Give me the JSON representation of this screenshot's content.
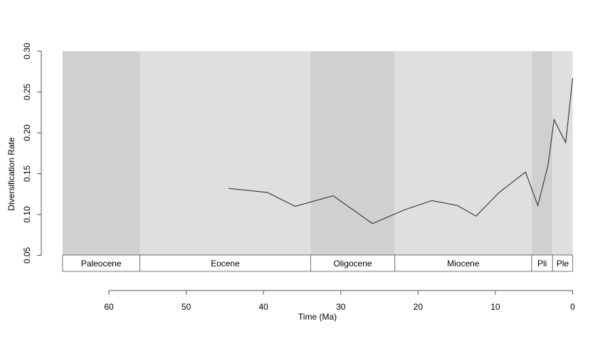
{
  "chart_data": {
    "type": "line",
    "title": "",
    "xlabel": "Time (Ma)",
    "ylabel": "Diversification Rate",
    "xlim": [
      66,
      0
    ],
    "ylim": [
      0.05,
      0.3
    ],
    "x_ticks": [
      60,
      50,
      40,
      30,
      20,
      10,
      0
    ],
    "y_ticks": [
      "0.05",
      "0.10",
      "0.15",
      "0.20",
      "0.25",
      "0.30"
    ],
    "x_tick_labels": [
      "60",
      "50",
      "40",
      "30",
      "20",
      "10",
      "0"
    ],
    "grid": false,
    "background_colors": {
      "dark": "#d0d0d0",
      "light": "#dfdfdf"
    },
    "line_color": "#333333",
    "epochs": [
      {
        "name": "Paleocene",
        "start": 66.0,
        "end": 56.0,
        "shade": "dark"
      },
      {
        "name": "Eocene",
        "start": 56.0,
        "end": 33.9,
        "shade": "light"
      },
      {
        "name": "Oligocene",
        "start": 33.9,
        "end": 23.0,
        "shade": "dark"
      },
      {
        "name": "Miocene",
        "start": 23.0,
        "end": 5.3,
        "shade": "light"
      },
      {
        "name": "Pli",
        "start": 5.3,
        "end": 2.6,
        "shade": "dark"
      },
      {
        "name": "Ple",
        "start": 2.6,
        "end": 0.0,
        "shade": "light"
      }
    ],
    "series": [
      {
        "x": [
          44.5,
          39.5,
          35.9,
          31.0,
          25.9,
          21.7,
          18.2,
          14.9,
          12.5,
          9.5,
          6.1,
          4.5,
          3.2,
          2.4,
          0.9,
          0.0
        ],
        "y": [
          0.132,
          0.127,
          0.11,
          0.123,
          0.089,
          0.106,
          0.117,
          0.111,
          0.098,
          0.127,
          0.152,
          0.111,
          0.16,
          0.216,
          0.188,
          0.267
        ]
      }
    ]
  }
}
